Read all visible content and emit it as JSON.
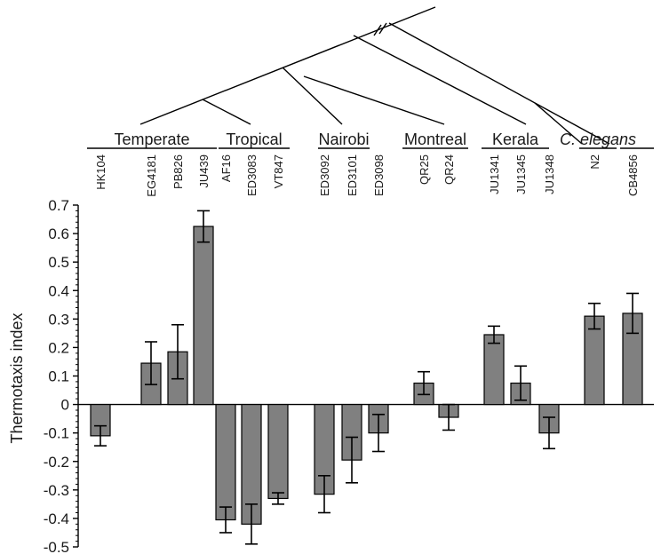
{
  "chart_data": {
    "type": "bar",
    "ylabel": "Thermotaxis index",
    "ylim": [
      -0.5,
      0.7
    ],
    "yticks": [
      "0.7",
      "0.6",
      "0.5",
      "0.4",
      "0.3",
      "0.2",
      "0.1",
      "0",
      "-0.1",
      "-0.2",
      "-0.3",
      "-0.4",
      "-0.5"
    ],
    "grid": false,
    "bar_color": "#808080",
    "categories": [
      "HK104",
      "EG4181",
      "PB826",
      "JU439",
      "AF16",
      "ED3083",
      "VT847",
      "ED3092",
      "ED3101",
      "ED3098",
      "QR25",
      "QR24",
      "JU1341",
      "JU1345",
      "JU1348",
      "N2",
      "CB4856"
    ],
    "values": [
      -0.11,
      0.145,
      0.185,
      0.625,
      -0.405,
      -0.42,
      -0.33,
      -0.315,
      -0.195,
      -0.1,
      0.075,
      -0.045,
      0.245,
      0.075,
      -0.1,
      0.31,
      0.32
    ],
    "errors": [
      0.035,
      0.075,
      0.095,
      0.055,
      0.045,
      0.07,
      0.02,
      0.065,
      0.08,
      0.065,
      0.04,
      0.045,
      0.03,
      0.06,
      0.055,
      0.045,
      0.07
    ],
    "groups": [
      {
        "label": "Temperate",
        "italic": false,
        "members": [
          0,
          1,
          2,
          3
        ]
      },
      {
        "label": "Tropical",
        "italic": false,
        "members": [
          4,
          5,
          6
        ]
      },
      {
        "label": "Nairobi",
        "italic": false,
        "members": [
          7,
          8,
          9
        ]
      },
      {
        "label": "Montreal",
        "italic": false,
        "members": [
          10,
          11
        ]
      },
      {
        "label": "Kerala",
        "italic": false,
        "members": [
          12,
          13,
          14
        ]
      },
      {
        "label": "C. elegans",
        "italic": true,
        "members": [
          15,
          16
        ]
      }
    ]
  }
}
